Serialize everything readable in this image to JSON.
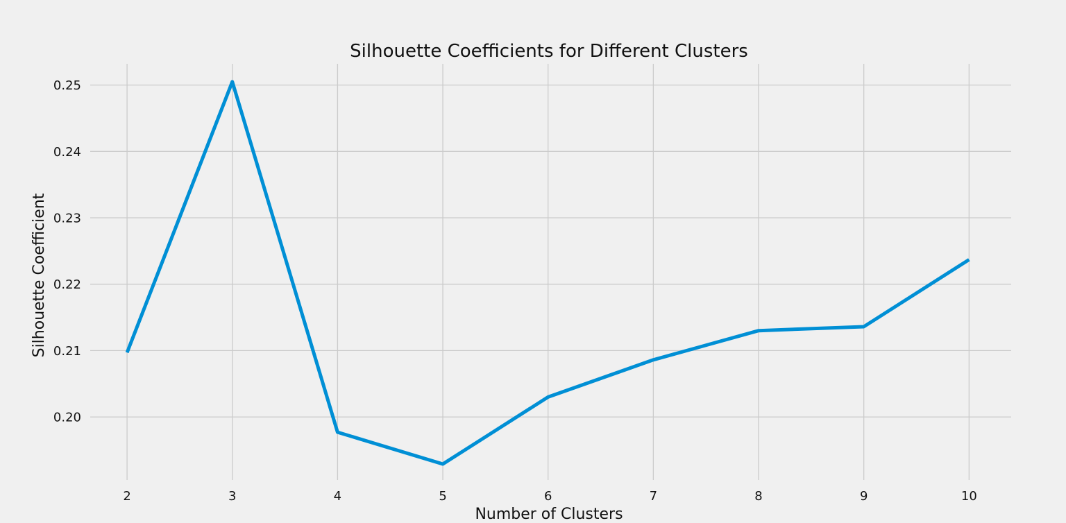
{
  "chart_data": {
    "type": "line",
    "title": "Silhouette Coefficients for Different Clusters",
    "xlabel": "Number of Clusters",
    "ylabel": "Silhouette Coefficient",
    "x": [
      2,
      3,
      4,
      5,
      6,
      7,
      8,
      9,
      10
    ],
    "xticks": [
      "2",
      "3",
      "4",
      "5",
      "6",
      "7",
      "8",
      "9",
      "10"
    ],
    "yticks": [
      "0.20",
      "0.21",
      "0.22",
      "0.23",
      "0.24",
      "0.25"
    ],
    "series": [
      {
        "values": [
          0.2097,
          0.2505,
          0.1977,
          0.1929,
          0.203,
          0.2086,
          0.213,
          0.2136,
          0.2237
        ],
        "color": "#008fd5"
      }
    ],
    "xlim": [
      1.65,
      10.4
    ],
    "ylim": [
      0.1905,
      0.2532
    ],
    "grid": true,
    "background": "#f0f0f0"
  }
}
